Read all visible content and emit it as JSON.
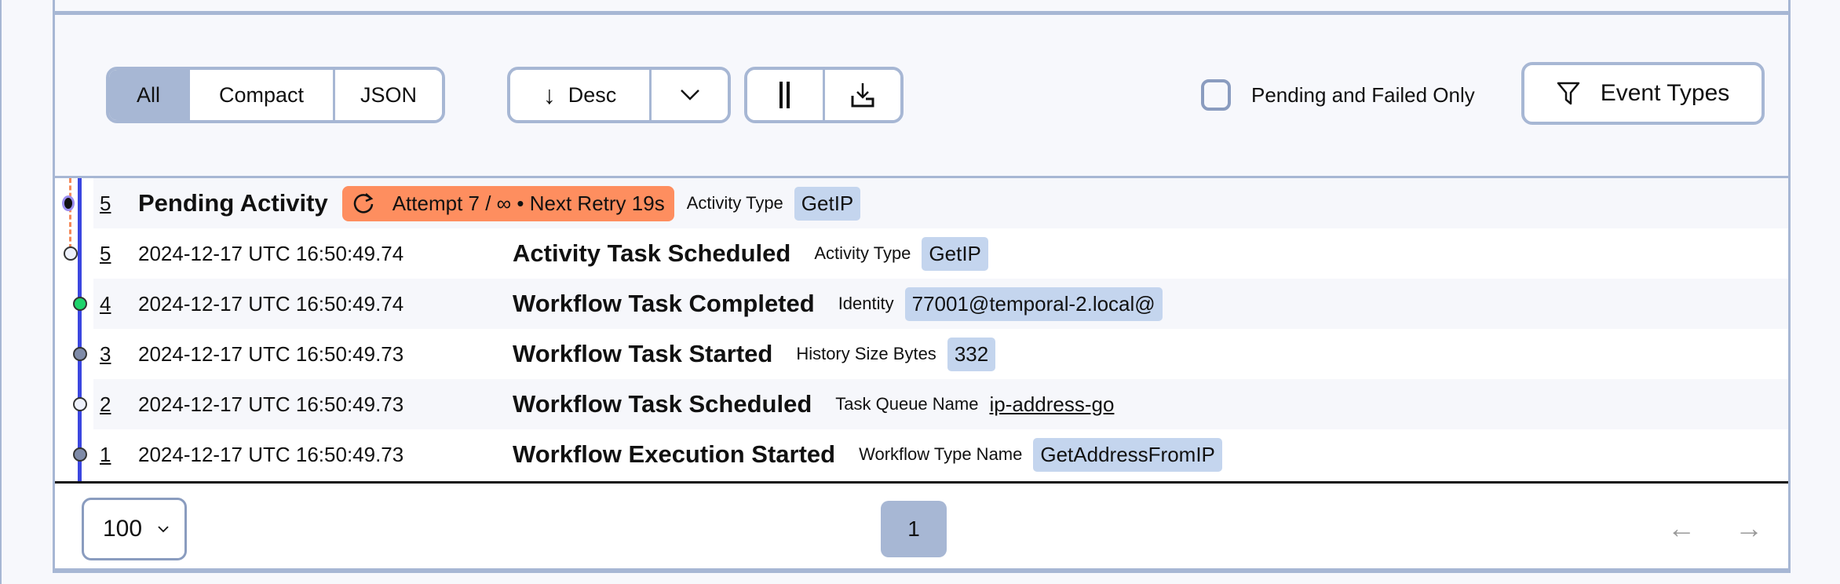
{
  "toolbar": {
    "view_modes": [
      "All",
      "Compact",
      "JSON"
    ],
    "active_view": "All",
    "sort_label": "Desc",
    "pending_failed_label": "Pending and Failed Only",
    "pending_failed_checked": false,
    "event_types_label": "Event Types"
  },
  "pending": {
    "id": "5",
    "name": "Pending Activity",
    "retry": "Attempt 7 / ∞ • Next Retry 19s",
    "attr_label": "Activity Type",
    "attr_value": "GetIP"
  },
  "events": [
    {
      "id": "5",
      "time": "2024-12-17 UTC 16:50:49.74",
      "name": "Activity Task Scheduled",
      "attr_label": "Activity Type",
      "attr_value": "GetIP",
      "dot": "#eef1fb"
    },
    {
      "id": "4",
      "time": "2024-12-17 UTC 16:50:49.74",
      "name": "Workflow Task Completed",
      "attr_label": "Identity",
      "attr_value": "77001@temporal-2.local@",
      "dot": "#1fd36b"
    },
    {
      "id": "3",
      "time": "2024-12-17 UTC 16:50:49.73",
      "name": "Workflow Task Started",
      "attr_label": "History Size Bytes",
      "attr_value": "332",
      "dot": "#7f8ba8"
    },
    {
      "id": "2",
      "time": "2024-12-17 UTC 16:50:49.73",
      "name": "Workflow Task Scheduled",
      "attr_label": "Task Queue Name",
      "attr_value": "ip-address-go",
      "dot": "#eef1fb"
    },
    {
      "id": "1",
      "time": "2024-12-17 UTC 16:50:49.73",
      "name": "Workflow Execution Started",
      "attr_label": "Workflow Type Name",
      "attr_value": "GetAddressFromIP",
      "dot": "#7f8ba8"
    }
  ],
  "footer": {
    "page_size": "100",
    "current_page": "1",
    "prev_icon": "←",
    "next_icon": "→"
  }
}
